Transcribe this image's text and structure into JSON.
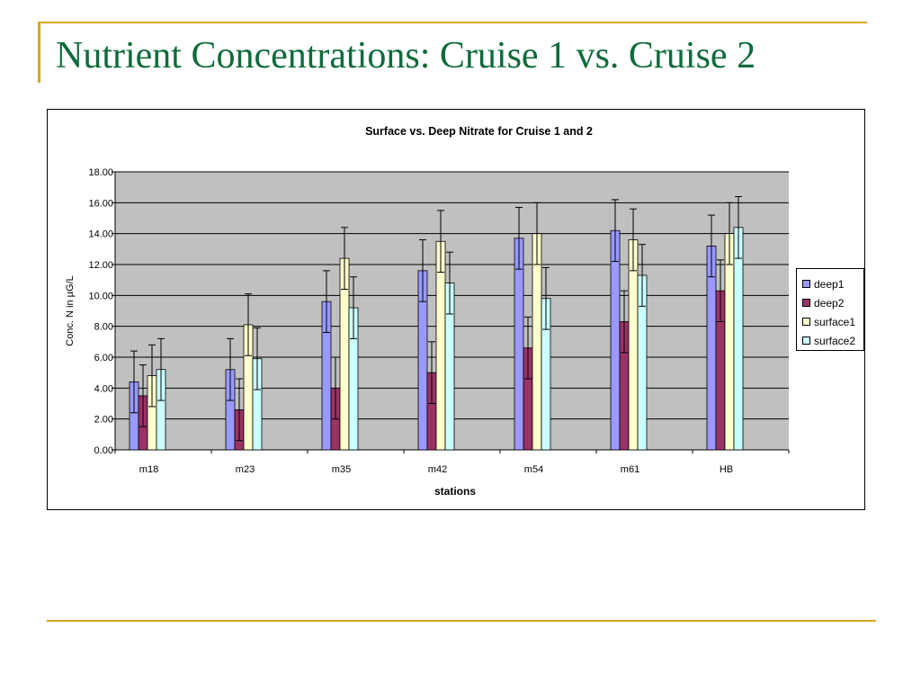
{
  "slide": {
    "title": "Nutrient Concentrations: Cruise 1 vs. Cruise 2"
  },
  "chart_data": {
    "type": "bar",
    "title": "Surface vs. Deep Nitrate for Cruise 1 and 2",
    "xlabel": "stations",
    "ylabel": "Conc. N in µG/L",
    "categories": [
      "m18",
      "m23",
      "m35",
      "m42",
      "m54",
      "m61",
      "HB"
    ],
    "ylim": [
      0,
      18
    ],
    "yticks": [
      "0.00",
      "2.00",
      "4.00",
      "6.00",
      "8.00",
      "10.00",
      "12.00",
      "14.00",
      "16.00",
      "18.00"
    ],
    "grid": true,
    "legend_position": "right",
    "plot_background": "#c0c0c0",
    "error_bars": "+/- 2.00",
    "series": [
      {
        "name": "deep1",
        "color": "#9999ff",
        "values": [
          4.4,
          5.2,
          9.6,
          11.6,
          13.7,
          14.2,
          13.2
        ],
        "error": 2.0
      },
      {
        "name": "deep2",
        "color": "#993366",
        "values": [
          3.5,
          2.6,
          4.0,
          5.0,
          6.6,
          8.3,
          10.3
        ],
        "error": 2.0
      },
      {
        "name": "surface1",
        "color": "#ffffcc",
        "values": [
          4.8,
          8.1,
          12.4,
          13.5,
          14.0,
          13.6,
          14.0
        ],
        "error": 2.0
      },
      {
        "name": "surface2",
        "color": "#ccffff",
        "values": [
          5.2,
          5.9,
          9.2,
          10.8,
          9.8,
          11.3,
          14.4
        ],
        "error": 2.0
      }
    ]
  }
}
